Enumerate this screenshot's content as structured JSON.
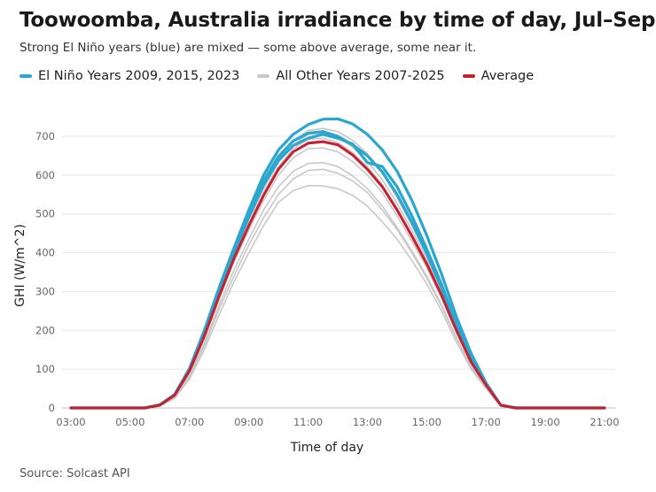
{
  "title": "Toowoomba, Australia irradiance by time of day, Jul–Sep",
  "subtitle": "Strong El Niño years (blue) are mixed — some above average, some near it.",
  "legend": [
    {
      "label": "El Niño Years 2009, 2015, 2023",
      "color": "#2aa6cf"
    },
    {
      "label": "All Other Years 2007-2025",
      "color": "#c8c8c8"
    },
    {
      "label": "Average",
      "color": "#c8202f"
    }
  ],
  "source": "Source: Solcast API",
  "chart_data": {
    "type": "line",
    "title": "Toowoomba, Australia irradiance by time of day, Jul–Sep",
    "xlabel": "Time of day",
    "ylabel": "GHI (W/m^2)",
    "xlim": [
      3,
      21
    ],
    "ylim": [
      0,
      700
    ],
    "grid": true,
    "legend_position": "top",
    "y_ticks": [
      0,
      100,
      200,
      300,
      400,
      500,
      600,
      700
    ],
    "x_ticks": [
      "03:00",
      "05:00",
      "07:00",
      "09:00",
      "11:00",
      "13:00",
      "15:00",
      "17:00",
      "19:00",
      "21:00"
    ],
    "x": [
      "03:00",
      "03:30",
      "04:00",
      "04:30",
      "05:00",
      "05:30",
      "06:00",
      "06:30",
      "07:00",
      "07:30",
      "08:00",
      "08:30",
      "09:00",
      "09:30",
      "10:00",
      "10:30",
      "11:00",
      "11:30",
      "12:00",
      "12:30",
      "13:00",
      "13:30",
      "14:00",
      "14:30",
      "15:00",
      "15:30",
      "16:00",
      "16:30",
      "17:00",
      "17:30",
      "18:00",
      "18:30",
      "19:00",
      "19:30",
      "20:00",
      "20:30",
      "21:00"
    ],
    "series": [
      {
        "name": "All Other Years 2007-2025",
        "group": "other",
        "values": [
          0,
          0,
          0,
          0,
          0,
          0,
          5,
          25,
          75,
          150,
          240,
          325,
          400,
          470,
          530,
          560,
          573,
          572,
          565,
          548,
          520,
          480,
          435,
          380,
          320,
          250,
          170,
          100,
          50,
          5,
          0,
          0,
          0,
          0,
          0,
          0,
          0
        ]
      },
      {
        "group": "other",
        "values": [
          0,
          0,
          0,
          0,
          0,
          0,
          5,
          25,
          80,
          160,
          255,
          340,
          420,
          490,
          550,
          590,
          612,
          615,
          605,
          585,
          555,
          510,
          460,
          400,
          335,
          262,
          180,
          105,
          52,
          5,
          0,
          0,
          0,
          0,
          0,
          0,
          0
        ]
      },
      {
        "group": "other",
        "values": [
          0,
          0,
          0,
          0,
          0,
          0,
          6,
          28,
          85,
          168,
          265,
          355,
          435,
          510,
          570,
          610,
          630,
          632,
          622,
          598,
          565,
          520,
          465,
          405,
          340,
          265,
          182,
          108,
          54,
          6,
          0,
          0,
          0,
          0,
          0,
          0,
          0
        ]
      },
      {
        "group": "other",
        "values": [
          0,
          0,
          0,
          0,
          0,
          0,
          7,
          32,
          92,
          180,
          280,
          375,
          458,
          535,
          600,
          645,
          668,
          670,
          660,
          635,
          600,
          555,
          495,
          430,
          362,
          282,
          195,
          116,
          58,
          7,
          0,
          0,
          0,
          0,
          0,
          0,
          0
        ]
      },
      {
        "group": "other",
        "values": [
          0,
          0,
          0,
          0,
          0,
          0,
          8,
          34,
          96,
          186,
          290,
          388,
          475,
          555,
          622,
          668,
          692,
          695,
          684,
          658,
          622,
          575,
          515,
          448,
          376,
          294,
          203,
          120,
          60,
          7,
          0,
          0,
          0,
          0,
          0,
          0,
          0
        ]
      },
      {
        "group": "other",
        "values": [
          0,
          0,
          0,
          0,
          0,
          0,
          8,
          35,
          98,
          190,
          295,
          395,
          485,
          565,
          632,
          678,
          705,
          708,
          698,
          672,
          635,
          588,
          527,
          458,
          385,
          300,
          207,
          122,
          62,
          8,
          0,
          0,
          0,
          0,
          0,
          0,
          0
        ]
      },
      {
        "group": "other",
        "values": [
          0,
          0,
          0,
          0,
          0,
          0,
          8,
          35,
          100,
          194,
          300,
          400,
          490,
          570,
          640,
          688,
          715,
          720,
          712,
          690,
          655,
          605,
          542,
          470,
          395,
          308,
          212,
          125,
          63,
          8,
          0,
          0,
          0,
          0,
          0,
          0,
          0
        ]
      },
      {
        "group": "other",
        "values": [
          0,
          0,
          0,
          0,
          0,
          0,
          7,
          33,
          94,
          183,
          285,
          382,
          468,
          547,
          614,
          660,
          685,
          688,
          678,
          652,
          616,
          568,
          508,
          441,
          370,
          289,
          199,
          118,
          59,
          7,
          0,
          0,
          0,
          0,
          0,
          0,
          0
        ]
      },
      {
        "name": "El Niño Years 2009, 2015, 2023",
        "group": "elnino",
        "values": [
          0,
          0,
          0,
          0,
          0,
          0,
          8,
          35,
          102,
          200,
          310,
          412,
          510,
          600,
          665,
          705,
          730,
          744,
          745,
          732,
          705,
          665,
          610,
          535,
          445,
          345,
          235,
          140,
          65,
          7,
          0,
          0,
          0,
          0,
          0,
          0,
          0
        ]
      },
      {
        "group": "elnino",
        "values": [
          0,
          0,
          0,
          0,
          0,
          0,
          8,
          34,
          100,
          196,
          305,
          405,
          500,
          585,
          648,
          688,
          708,
          712,
          700,
          678,
          650,
          608,
          550,
          478,
          398,
          310,
          212,
          125,
          62,
          7,
          0,
          0,
          0,
          0,
          0,
          0,
          0
        ]
      },
      {
        "group": "elnino",
        "values": [
          0,
          0,
          0,
          0,
          0,
          0,
          8,
          34,
          100,
          195,
          302,
          400,
          492,
          575,
          638,
          676,
          695,
          705,
          695,
          680,
          632,
          622,
          570,
          495,
          410,
          318,
          216,
          127,
          62,
          7,
          0,
          0,
          0,
          0,
          0,
          0,
          0
        ]
      },
      {
        "name": "Average",
        "group": "average",
        "values": [
          0,
          0,
          0,
          0,
          0,
          0,
          7,
          33,
          96,
          185,
          288,
          385,
          470,
          548,
          615,
          660,
          682,
          686,
          678,
          652,
          615,
          570,
          510,
          443,
          372,
          290,
          200,
          118,
          59,
          7,
          0,
          0,
          0,
          0,
          0,
          0,
          0
        ]
      }
    ]
  }
}
